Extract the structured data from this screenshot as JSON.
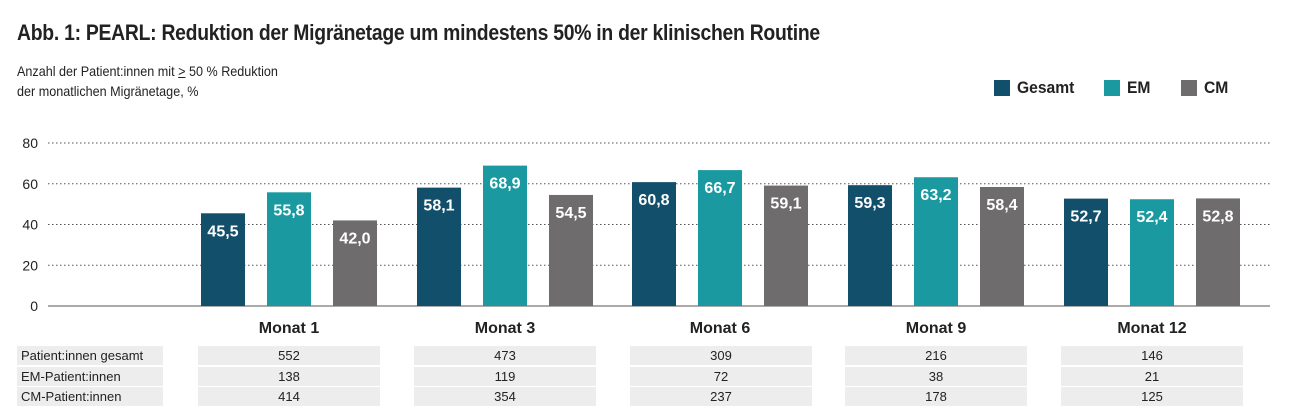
{
  "title": "Abb. 1: PEARL: Reduktion der Migränetage um mindestens 50% in der klinischen Routine",
  "subtitle_line1_before": "Anzahl der Patient:innen mit ",
  "subtitle_line1_symbol": ">",
  "subtitle_line1_after": " 50 % Reduktion",
  "subtitle_line2": "der monatlichen Migränetage, %",
  "colors": {
    "gesamt": "#124f6b",
    "em": "#1a9aa0",
    "cm": "#6e6c6d",
    "grid": "#555555",
    "table_bg": "#ededed"
  },
  "chart_data": {
    "type": "bar",
    "categories": [
      "Monat 1",
      "Monat 3",
      "Monat 6",
      "Monat 9",
      "Monat 12"
    ],
    "series": [
      {
        "name": "Gesamt",
        "values": [
          45.5,
          58.1,
          60.8,
          59.3,
          52.7
        ],
        "labels": [
          "45,5",
          "58,1",
          "60,8",
          "59,3",
          "52,7"
        ]
      },
      {
        "name": "EM",
        "values": [
          55.8,
          68.9,
          66.7,
          63.2,
          52.4
        ],
        "labels": [
          "55,8",
          "68,9",
          "66,7",
          "63,2",
          "52,4"
        ]
      },
      {
        "name": "CM",
        "values": [
          42.0,
          54.5,
          59.1,
          58.4,
          52.8
        ],
        "labels": [
          "42,0",
          "54,5",
          "59,1",
          "58,4",
          "52,8"
        ]
      }
    ],
    "yticks": [
      0,
      20,
      40,
      60,
      80
    ],
    "ylim": [
      0,
      80
    ],
    "grid": true,
    "legend_position": "top-right"
  },
  "table": {
    "rows": [
      {
        "label": "Patient:innen gesamt",
        "values": [
          "552",
          "473",
          "309",
          "216",
          "146"
        ]
      },
      {
        "label": "EM-Patient:innen",
        "values": [
          "138",
          "119",
          "72",
          "38",
          "21"
        ]
      },
      {
        "label": "CM-Patient:innen",
        "values": [
          "414",
          "354",
          "237",
          "178",
          "125"
        ]
      }
    ]
  }
}
